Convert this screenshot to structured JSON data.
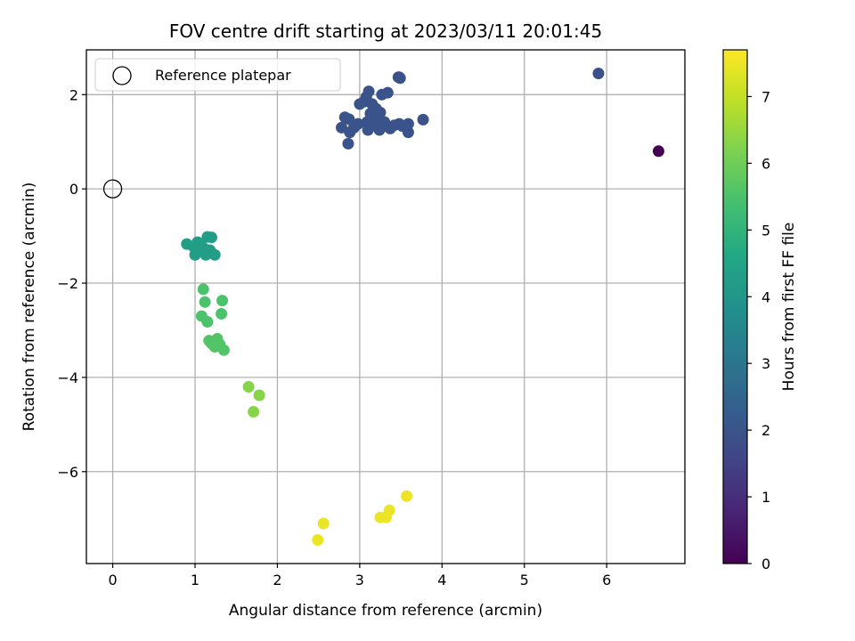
{
  "chart_data": {
    "type": "scatter",
    "title": "FOV centre drift starting at 2023/03/11 20:01:45",
    "xlabel": "Angular distance from reference (arcmin)",
    "ylabel": "Rotation from reference (arcmin)",
    "xlim": [
      -0.32,
      6.95
    ],
    "ylim": [
      -7.95,
      2.95
    ],
    "x_ticks": [
      0,
      1,
      2,
      3,
      4,
      5,
      6
    ],
    "y_ticks": [
      -6,
      -4,
      -2,
      0,
      2
    ],
    "x_tick_labels": [
      "0",
      "1",
      "2",
      "3",
      "4",
      "5",
      "6"
    ],
    "y_tick_labels": [
      "−6",
      "−4",
      "−2",
      "0",
      "2"
    ],
    "grid": true,
    "legend": {
      "placement": "upper-left",
      "entries": [
        "Reference platepar"
      ]
    },
    "reference_point": {
      "x": 0,
      "y": 0
    },
    "colorbar": {
      "label": "Hours from first FF file",
      "range": [
        0,
        7.7
      ],
      "ticks": [
        0,
        1,
        2,
        3,
        4,
        5,
        6,
        7
      ],
      "tick_labels": [
        "0",
        "1",
        "2",
        "3",
        "4",
        "5",
        "6",
        "7"
      ],
      "colormap": "viridis"
    },
    "points": [
      {
        "x": 6.63,
        "y": 0.8,
        "h": 0.0
      },
      {
        "x": 5.9,
        "y": 2.45,
        "h": 1.9
      },
      {
        "x": 3.48,
        "y": 2.37,
        "h": 1.9
      },
      {
        "x": 3.47,
        "y": 2.37,
        "h": 1.9
      },
      {
        "x": 3.49,
        "y": 2.35,
        "h": 1.9
      },
      {
        "x": 2.78,
        "y": 1.3,
        "h": 2.0
      },
      {
        "x": 2.82,
        "y": 1.52,
        "h": 2.0
      },
      {
        "x": 2.87,
        "y": 1.48,
        "h": 2.0
      },
      {
        "x": 2.88,
        "y": 1.2,
        "h": 2.0
      },
      {
        "x": 2.93,
        "y": 1.3,
        "h": 2.0
      },
      {
        "x": 2.86,
        "y": 0.96,
        "h": 2.0
      },
      {
        "x": 2.98,
        "y": 1.38,
        "h": 2.0
      },
      {
        "x": 3.0,
        "y": 1.8,
        "h": 2.0
      },
      {
        "x": 3.05,
        "y": 1.85,
        "h": 2.0
      },
      {
        "x": 3.08,
        "y": 1.95,
        "h": 2.0
      },
      {
        "x": 3.11,
        "y": 2.07,
        "h": 2.0
      },
      {
        "x": 3.09,
        "y": 1.42,
        "h": 2.0
      },
      {
        "x": 3.1,
        "y": 1.25,
        "h": 2.0
      },
      {
        "x": 3.13,
        "y": 1.6,
        "h": 2.0
      },
      {
        "x": 3.15,
        "y": 1.8,
        "h": 2.0
      },
      {
        "x": 3.18,
        "y": 1.35,
        "h": 2.0
      },
      {
        "x": 3.2,
        "y": 1.7,
        "h": 2.0
      },
      {
        "x": 3.22,
        "y": 1.5,
        "h": 2.0
      },
      {
        "x": 3.24,
        "y": 1.25,
        "h": 2.0
      },
      {
        "x": 3.25,
        "y": 1.62,
        "h": 2.0
      },
      {
        "x": 3.27,
        "y": 2.0,
        "h": 2.0
      },
      {
        "x": 3.3,
        "y": 1.42,
        "h": 2.0
      },
      {
        "x": 3.34,
        "y": 2.04,
        "h": 2.0
      },
      {
        "x": 3.37,
        "y": 1.28,
        "h": 2.0
      },
      {
        "x": 3.42,
        "y": 1.35,
        "h": 2.0
      },
      {
        "x": 3.48,
        "y": 1.38,
        "h": 2.0
      },
      {
        "x": 3.52,
        "y": 1.33,
        "h": 2.0
      },
      {
        "x": 3.59,
        "y": 1.2,
        "h": 2.0
      },
      {
        "x": 3.59,
        "y": 1.38,
        "h": 2.0
      },
      {
        "x": 3.77,
        "y": 1.47,
        "h": 2.0
      },
      {
        "x": 0.9,
        "y": -1.17,
        "h": 4.3
      },
      {
        "x": 0.98,
        "y": -1.22,
        "h": 4.3
      },
      {
        "x": 1.0,
        "y": -1.4,
        "h": 4.3
      },
      {
        "x": 1.03,
        "y": -1.13,
        "h": 4.3
      },
      {
        "x": 1.07,
        "y": -1.18,
        "h": 4.3
      },
      {
        "x": 1.1,
        "y": -1.25,
        "h": 4.3
      },
      {
        "x": 1.13,
        "y": -1.4,
        "h": 4.3
      },
      {
        "x": 1.15,
        "y": -1.02,
        "h": 4.3
      },
      {
        "x": 1.18,
        "y": -1.3,
        "h": 4.3
      },
      {
        "x": 1.2,
        "y": -1.03,
        "h": 4.3
      },
      {
        "x": 1.24,
        "y": -1.4,
        "h": 4.3
      },
      {
        "x": 1.1,
        "y": -2.13,
        "h": 5.5
      },
      {
        "x": 1.12,
        "y": -2.4,
        "h": 5.5
      },
      {
        "x": 1.08,
        "y": -2.7,
        "h": 5.5
      },
      {
        "x": 1.15,
        "y": -2.82,
        "h": 5.5
      },
      {
        "x": 1.33,
        "y": -2.37,
        "h": 5.5
      },
      {
        "x": 1.32,
        "y": -2.65,
        "h": 5.5
      },
      {
        "x": 1.17,
        "y": -3.22,
        "h": 5.6
      },
      {
        "x": 1.2,
        "y": -3.28,
        "h": 5.6
      },
      {
        "x": 1.24,
        "y": -3.35,
        "h": 5.6
      },
      {
        "x": 1.27,
        "y": -3.18,
        "h": 5.6
      },
      {
        "x": 1.3,
        "y": -3.3,
        "h": 5.6
      },
      {
        "x": 1.35,
        "y": -3.42,
        "h": 5.6
      },
      {
        "x": 1.65,
        "y": -4.2,
        "h": 6.3
      },
      {
        "x": 1.78,
        "y": -4.38,
        "h": 6.3
      },
      {
        "x": 1.71,
        "y": -4.73,
        "h": 6.3
      },
      {
        "x": 2.49,
        "y": -7.45,
        "h": 7.5
      },
      {
        "x": 2.56,
        "y": -7.1,
        "h": 7.5
      },
      {
        "x": 3.25,
        "y": -6.97,
        "h": 7.5
      },
      {
        "x": 3.32,
        "y": -6.97,
        "h": 7.5
      },
      {
        "x": 3.36,
        "y": -6.82,
        "h": 7.5
      },
      {
        "x": 3.57,
        "y": -6.52,
        "h": 7.5
      }
    ]
  }
}
